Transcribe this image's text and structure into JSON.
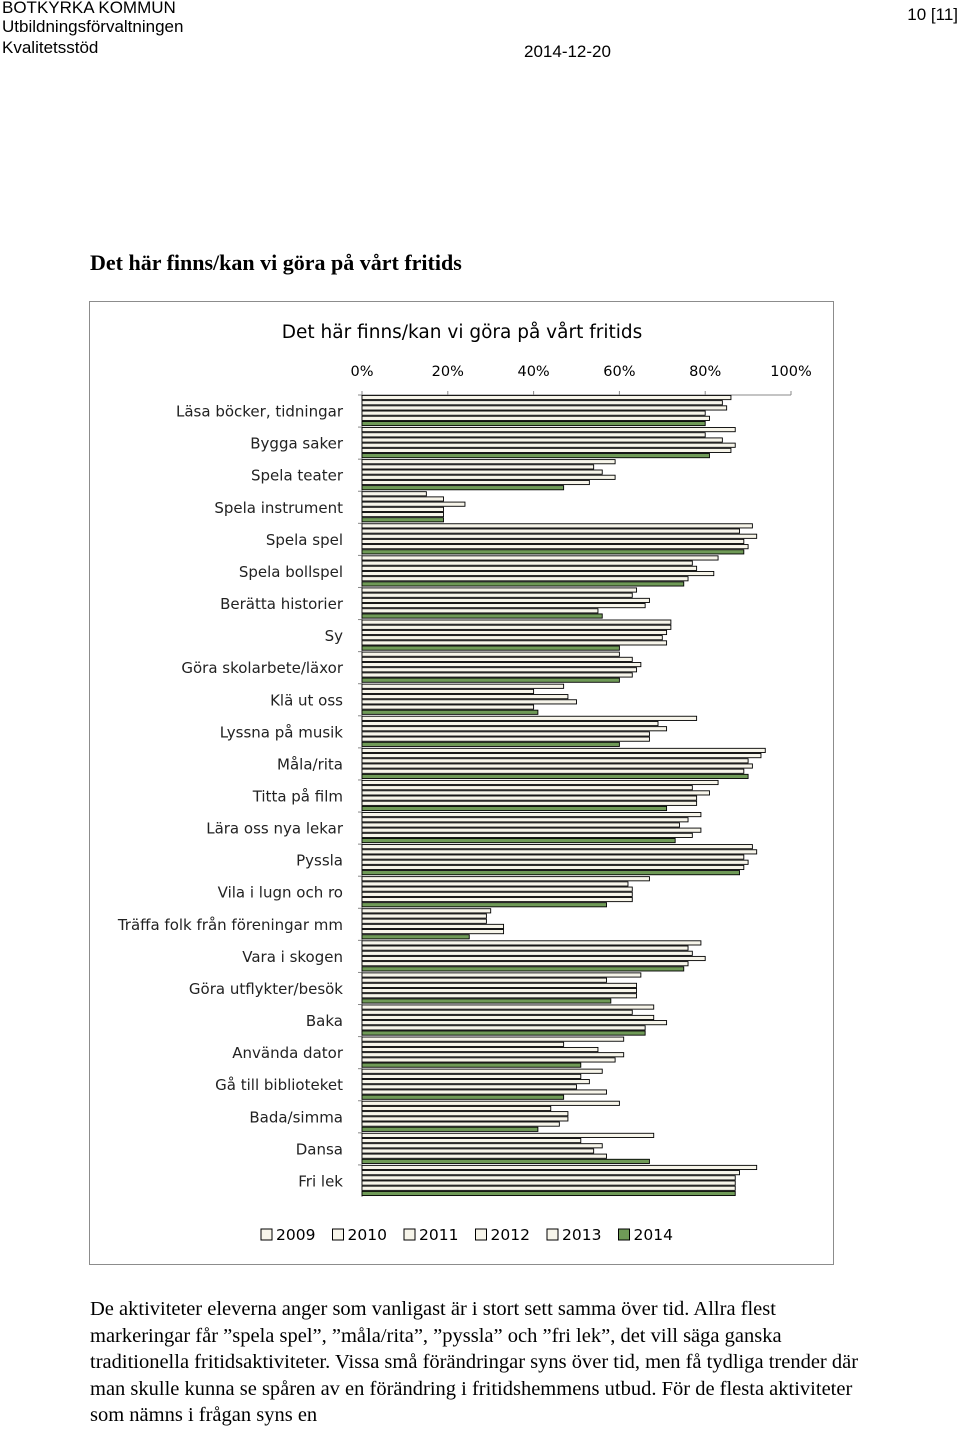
{
  "header": {
    "org": "BOTKYRKA KOMMUN",
    "dept": "Utbildningsförvaltningen",
    "unit": "Kvalitetsstöd",
    "date": "2014-12-20",
    "page": "10 [11]"
  },
  "doc_heading": "Det här finns/kan vi göra på vårt fritids",
  "body_paragraph": "De aktiviteter eleverna anger som vanligast är i stort sett samma över tid. Allra flest markeringar får ”spela spel”, ”måla/rita”, ”pyssla” och ”fri lek”, det vill säga ganska traditionella fritidsaktiviteter. Vissa små förändringar syns över tid, men få tydliga trender där man skulle kunna se spåren av en förändring i fritidshemmens utbud. För de flesta aktiviteter som nämns i frågan syns en",
  "colors": {
    "bar_fill": "#f7f5ea",
    "bar_2014": "#6f9a57",
    "bar_stroke": "#000000",
    "axis": "#888888"
  },
  "chart_data": {
    "type": "bar",
    "orientation": "horizontal",
    "title": "Det här finns/kan vi göra på vårt fritids",
    "xlim": [
      0,
      100
    ],
    "ticks": [
      "0%",
      "20%",
      "40%",
      "60%",
      "80%",
      "100%"
    ],
    "legend_position": "bottom",
    "categories": [
      "Läsa böcker, tidningar",
      "Bygga saker",
      "Spela teater",
      "Spela instrument",
      "Spela spel",
      "Spela bollspel",
      "Berätta historier",
      "Sy",
      "Göra skolarbete/läxor",
      "Klä ut oss",
      "Lyssna på musik",
      "Måla/rita",
      "Titta på film",
      "Lära oss nya lekar",
      "Pyssla",
      "Vila i lugn och ro",
      "Träffa folk från föreningar mm",
      "Vara i skogen",
      "Göra utflykter/besök",
      "Baka",
      "Använda dator",
      "Gå till biblioteket",
      "Bada/simma",
      "Dansa",
      "Fri lek"
    ],
    "series": [
      {
        "name": "2009",
        "values": [
          86,
          87,
          59,
          15,
          91,
          83,
          64,
          72,
          60,
          47,
          78,
          94,
          83,
          79,
          91,
          67,
          30,
          79,
          65,
          68,
          61,
          56,
          60,
          68,
          92
        ]
      },
      {
        "name": "2010",
        "values": [
          84,
          80,
          54,
          19,
          88,
          77,
          63,
          72,
          63,
          40,
          69,
          93,
          77,
          76,
          92,
          62,
          29,
          76,
          57,
          63,
          47,
          51,
          44,
          51,
          88
        ]
      },
      {
        "name": "2011",
        "values": [
          85,
          84,
          56,
          24,
          92,
          78,
          67,
          71,
          65,
          48,
          71,
          90,
          81,
          74,
          89,
          63,
          29,
          77,
          64,
          68,
          55,
          53,
          48,
          56,
          87
        ]
      },
      {
        "name": "2012",
        "values": [
          80,
          87,
          59,
          19,
          89,
          82,
          66,
          70,
          64,
          50,
          67,
          91,
          78,
          79,
          90,
          63,
          33,
          80,
          64,
          71,
          61,
          50,
          48,
          54,
          87
        ]
      },
      {
        "name": "2013",
        "values": [
          81,
          86,
          53,
          19,
          90,
          76,
          55,
          71,
          63,
          40,
          67,
          89,
          78,
          77,
          89,
          63,
          33,
          76,
          64,
          66,
          59,
          57,
          46,
          57,
          87
        ]
      },
      {
        "name": "2014",
        "values": [
          80,
          81,
          47,
          19,
          89,
          75,
          56,
          60,
          60,
          41,
          60,
          90,
          71,
          73,
          88,
          57,
          25,
          75,
          58,
          66,
          51,
          47,
          41,
          67,
          87
        ]
      }
    ]
  }
}
